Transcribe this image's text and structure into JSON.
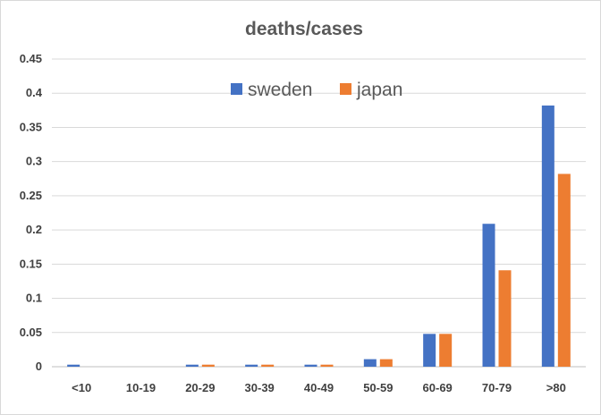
{
  "chart_data": {
    "type": "bar",
    "title": "deaths/cases",
    "xlabel": "",
    "ylabel": "",
    "categories": [
      "<10",
      "10-19",
      "20-29",
      "30-39",
      "40-49",
      "50-59",
      "60-69",
      "70-79",
      ">80"
    ],
    "series": [
      {
        "name": "sweden",
        "color": "#4472c4",
        "values": [
          0.003,
          0,
          0.003,
          0.003,
          0.003,
          0.011,
          0.048,
          0.209,
          0.382
        ]
      },
      {
        "name": "japan",
        "color": "#ed7d31",
        "values": [
          0,
          0,
          0.003,
          0.003,
          0.003,
          0.011,
          0.048,
          0.141,
          0.282
        ]
      }
    ],
    "ylim": [
      0,
      0.45
    ],
    "yticks": [
      "0",
      "0.05",
      "0.1",
      "0.15",
      "0.2",
      "0.25",
      "0.3",
      "0.35",
      "0.4",
      "0.45"
    ],
    "grid": true,
    "legend_position": "top-center"
  }
}
